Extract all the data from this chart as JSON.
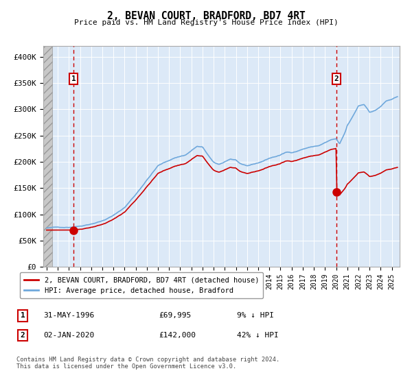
{
  "title": "2, BEVAN COURT, BRADFORD, BD7 4RT",
  "subtitle": "Price paid vs. HM Land Registry's House Price Index (HPI)",
  "ylabel_ticks": [
    "£0",
    "£50K",
    "£100K",
    "£150K",
    "£200K",
    "£250K",
    "£300K",
    "£350K",
    "£400K"
  ],
  "ytick_vals": [
    0,
    50000,
    100000,
    150000,
    200000,
    250000,
    300000,
    350000,
    400000
  ],
  "ylim": [
    0,
    420000
  ],
  "xlim_start": 1993.7,
  "xlim_end": 2025.7,
  "xticks": [
    1994,
    1995,
    1996,
    1997,
    1998,
    1999,
    2000,
    2001,
    2002,
    2003,
    2004,
    2005,
    2006,
    2007,
    2008,
    2009,
    2010,
    2011,
    2012,
    2013,
    2014,
    2015,
    2016,
    2017,
    2018,
    2019,
    2020,
    2021,
    2022,
    2023,
    2024,
    2025
  ],
  "hpi_color": "#6fa8dc",
  "price_color": "#cc0000",
  "dashed_color": "#cc0000",
  "marker_color": "#cc0000",
  "label1": "2, BEVAN COURT, BRADFORD, BD7 4RT (detached house)",
  "label2": "HPI: Average price, detached house, Bradford",
  "sale1_date": "31-MAY-1996",
  "sale1_price": "£69,995",
  "sale1_hpi": "9% ↓ HPI",
  "sale2_date": "02-JAN-2020",
  "sale2_price": "£142,000",
  "sale2_hpi": "42% ↓ HPI",
  "footnote": "Contains HM Land Registry data © Crown copyright and database right 2024.\nThis data is licensed under the Open Government Licence v3.0.",
  "background_color": "#ffffff",
  "plot_bg_color": "#dce9f7",
  "sale1_x": 1996.42,
  "sale1_y": 69995,
  "sale2_x": 2020.02,
  "sale2_y": 142000
}
